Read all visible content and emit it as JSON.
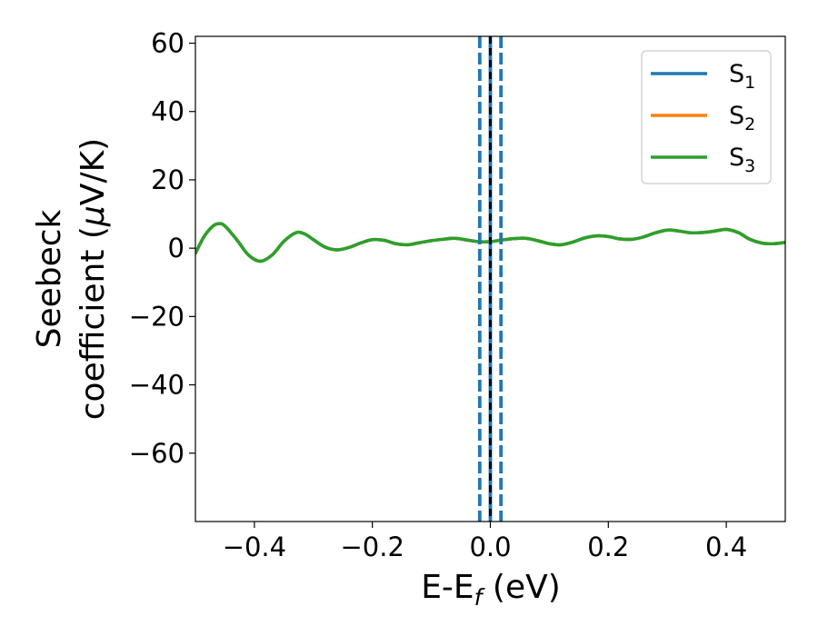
{
  "chart_data": {
    "type": "line",
    "xlabel": {
      "main": "E-E",
      "sub": "f",
      "tail": " (eV)"
    },
    "ylabel": {
      "line1": "Seebeck",
      "line2_pre": "coefficient  (",
      "line2_mu": "μ",
      "line2_post": "V/K)"
    },
    "xlim": [
      -0.5,
      0.5
    ],
    "ylim": [
      -80,
      62
    ],
    "xticks": [
      -0.4,
      -0.2,
      0.0,
      0.2,
      0.4
    ],
    "xtick_labels": [
      "−0.4",
      "−0.2",
      "0.0",
      "0.2",
      "0.4"
    ],
    "yticks": [
      60,
      40,
      20,
      0,
      -20,
      -40,
      -60
    ],
    "ytick_labels": [
      "60",
      "40",
      "20",
      "0",
      "−20",
      "−40",
      "−60"
    ],
    "grid": false,
    "legend_position": "top-right",
    "series": [
      {
        "name": "S",
        "name_sub": "1",
        "color": "#1f77b4",
        "x": [
          -0.5,
          -0.485,
          -0.47,
          -0.46,
          -0.45,
          -0.43,
          -0.41,
          -0.39,
          -0.37,
          -0.35,
          -0.33,
          -0.315,
          -0.3,
          -0.28,
          -0.26,
          -0.24,
          -0.22,
          -0.2,
          -0.18,
          -0.16,
          -0.14,
          -0.12,
          -0.1,
          -0.08,
          -0.06,
          -0.04,
          -0.02,
          0.0,
          0.02,
          0.04,
          0.06,
          0.08,
          0.1,
          0.12,
          0.14,
          0.16,
          0.18,
          0.2,
          0.22,
          0.24,
          0.26,
          0.28,
          0.3,
          0.32,
          0.34,
          0.36,
          0.38,
          0.4,
          0.42,
          0.44,
          0.46,
          0.48,
          0.5
        ],
        "y": [
          -1.5,
          3.5,
          6.5,
          7.2,
          6.5,
          2.5,
          -2.0,
          -3.8,
          -2.0,
          2.0,
          4.5,
          4.2,
          2.5,
          0.3,
          -0.5,
          0.2,
          1.5,
          2.5,
          2.3,
          1.3,
          1.0,
          1.6,
          2.2,
          2.6,
          2.9,
          2.4,
          1.9,
          1.9,
          2.4,
          2.8,
          2.9,
          2.2,
          1.3,
          1.0,
          1.8,
          3.0,
          3.6,
          3.4,
          2.7,
          2.6,
          3.3,
          4.5,
          5.3,
          5.0,
          4.5,
          4.6,
          5.0,
          5.5,
          4.6,
          2.6,
          1.5,
          1.3,
          1.7
        ]
      },
      {
        "name": "S",
        "name_sub": "2",
        "color": "#ff7f0e",
        "x": [
          -0.5,
          -0.485,
          -0.47,
          -0.46,
          -0.45,
          -0.43,
          -0.41,
          -0.39,
          -0.37,
          -0.35,
          -0.33,
          -0.315,
          -0.3,
          -0.28,
          -0.26,
          -0.24,
          -0.22,
          -0.2,
          -0.18,
          -0.16,
          -0.14,
          -0.12,
          -0.1,
          -0.08,
          -0.06,
          -0.04,
          -0.02,
          0.0,
          0.02,
          0.04,
          0.06,
          0.08,
          0.1,
          0.12,
          0.14,
          0.16,
          0.18,
          0.2,
          0.22,
          0.24,
          0.26,
          0.28,
          0.3,
          0.32,
          0.34,
          0.36,
          0.38,
          0.4,
          0.42,
          0.44,
          0.46,
          0.48,
          0.5
        ],
        "y": [
          -1.5,
          3.5,
          6.5,
          7.2,
          6.5,
          2.5,
          -2.0,
          -3.8,
          -2.0,
          2.0,
          4.5,
          4.2,
          2.5,
          0.3,
          -0.5,
          0.2,
          1.5,
          2.5,
          2.3,
          1.3,
          1.0,
          1.6,
          2.2,
          2.6,
          2.9,
          2.4,
          1.9,
          1.9,
          2.4,
          2.8,
          2.9,
          2.2,
          1.3,
          1.0,
          1.8,
          3.0,
          3.6,
          3.4,
          2.7,
          2.6,
          3.3,
          4.5,
          5.3,
          5.0,
          4.5,
          4.6,
          5.0,
          5.5,
          4.6,
          2.6,
          1.5,
          1.3,
          1.7
        ]
      },
      {
        "name": "S",
        "name_sub": "3",
        "color": "#2ca02c",
        "x": [
          -0.5,
          -0.485,
          -0.47,
          -0.46,
          -0.45,
          -0.43,
          -0.41,
          -0.39,
          -0.37,
          -0.35,
          -0.33,
          -0.315,
          -0.3,
          -0.28,
          -0.26,
          -0.24,
          -0.22,
          -0.2,
          -0.18,
          -0.16,
          -0.14,
          -0.12,
          -0.1,
          -0.08,
          -0.06,
          -0.04,
          -0.02,
          0.0,
          0.02,
          0.04,
          0.06,
          0.08,
          0.1,
          0.12,
          0.14,
          0.16,
          0.18,
          0.2,
          0.22,
          0.24,
          0.26,
          0.28,
          0.3,
          0.32,
          0.34,
          0.36,
          0.38,
          0.4,
          0.42,
          0.44,
          0.46,
          0.48,
          0.5
        ],
        "y": [
          -1.5,
          3.5,
          6.5,
          7.2,
          6.5,
          2.5,
          -2.0,
          -3.8,
          -2.0,
          2.0,
          4.5,
          4.2,
          2.5,
          0.3,
          -0.5,
          0.2,
          1.5,
          2.5,
          2.3,
          1.3,
          1.0,
          1.6,
          2.2,
          2.6,
          2.9,
          2.4,
          1.9,
          1.9,
          2.4,
          2.8,
          2.9,
          2.2,
          1.3,
          1.0,
          1.8,
          3.0,
          3.6,
          3.4,
          2.7,
          2.6,
          3.3,
          4.5,
          5.3,
          5.0,
          4.5,
          4.6,
          5.0,
          5.5,
          4.6,
          2.6,
          1.5,
          1.3,
          1.7
        ]
      }
    ],
    "vlines": [
      {
        "x": -0.018,
        "color": "#1f77b4",
        "style": "dashed"
      },
      {
        "x": 0.018,
        "color": "#1f77b4",
        "style": "dashed"
      },
      {
        "x": 0.0,
        "color": "#1f77b4",
        "style": "solid"
      },
      {
        "x": 0.0,
        "color": "#000000",
        "style": "dashed"
      }
    ]
  }
}
